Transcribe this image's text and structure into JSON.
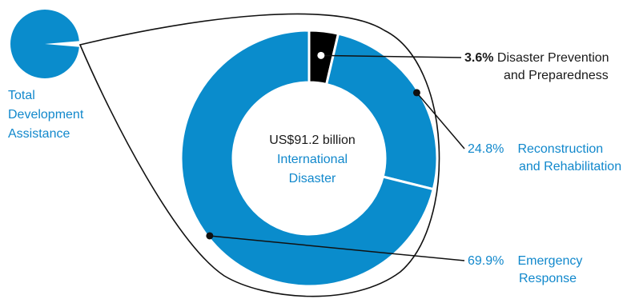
{
  "colors": {
    "segment": "#0a8ccc",
    "highlight": "#000000",
    "text_accent": "#1188cc",
    "text_dark": "#1a1a1a"
  },
  "small_pie": {
    "label_lines": [
      "Total",
      "Development",
      "Assistance"
    ]
  },
  "center": {
    "amount": "US$91.2 billion",
    "label_lines": [
      "International",
      "Disaster"
    ]
  },
  "chart_data": {
    "type": "pie",
    "donut": true,
    "segments": [
      {
        "percent_label": "3.6%",
        "value": 3.6,
        "label_lines": [
          "Disaster Prevention",
          "and Preparedness"
        ],
        "fill": "#000000"
      },
      {
        "percent_label": "24.8%",
        "value": 24.8,
        "label_lines": [
          "Reconstruction",
          "and Rehabilitation"
        ],
        "fill": "#0a8ccc"
      },
      {
        "percent_label": "69.9%",
        "value": 69.9,
        "label_lines": [
          "Emergency",
          "Response"
        ],
        "fill": "#0a8ccc"
      }
    ]
  }
}
